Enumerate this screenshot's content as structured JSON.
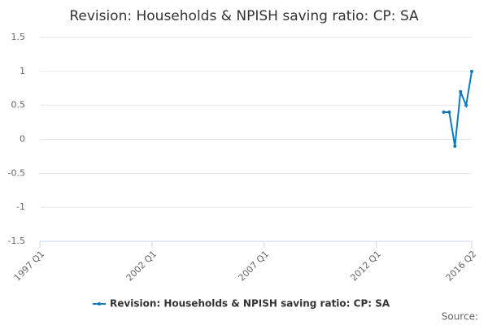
{
  "chart_data": {
    "type": "line",
    "title": "Revision: Households & NPISH saving ratio: CP: SA",
    "x": [
      2015.0,
      2015.25,
      2015.5,
      2015.75,
      2016.0,
      2016.25
    ],
    "series": [
      {
        "name": "Revision: Households & NPISH saving ratio: CP: SA",
        "color": "#0b7bbd",
        "values": [
          0.4,
          0.4,
          -0.1,
          0.7,
          0.5,
          1.0
        ]
      }
    ],
    "xlim": [
      1997,
      2016.25
    ],
    "xticks": [
      {
        "value": 1997,
        "label": "1997 Q1"
      },
      {
        "value": 2002,
        "label": "2002 Q1"
      },
      {
        "value": 2007,
        "label": "2007 Q1"
      },
      {
        "value": 2012,
        "label": "2012 Q1"
      },
      {
        "value": 2016.25,
        "label": "2016 Q2"
      }
    ],
    "ylim": [
      -1.5,
      1.5
    ],
    "yticks": [
      -1.5,
      -1,
      -0.5,
      0,
      0.5,
      1,
      1.5
    ],
    "grid": true,
    "legend": "bottom",
    "source": "Source:"
  }
}
